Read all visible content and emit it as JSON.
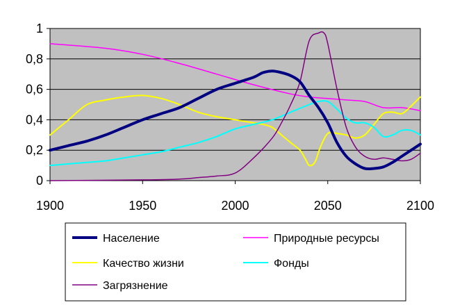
{
  "chart_data": {
    "type": "line",
    "title": "",
    "xlabel": "",
    "ylabel": "",
    "xlim": [
      1900,
      2100
    ],
    "ylim": [
      0,
      1
    ],
    "x_ticks": [
      1900,
      1950,
      2000,
      2050,
      2100
    ],
    "x_tick_labels": [
      "1900",
      "1950",
      "2000",
      "2050",
      "2100"
    ],
    "y_ticks": [
      0,
      0.2,
      0.4,
      0.6,
      0.8,
      1
    ],
    "y_tick_labels": [
      "0",
      "0,2",
      "0,4",
      "0,6",
      "0,8",
      "1"
    ],
    "grid": "horizontal",
    "plot_background": "#c0c0c0",
    "legend_position": "bottom",
    "series": [
      {
        "name": "Население",
        "color": "#000080",
        "x": [
          1900,
          1910,
          1920,
          1930,
          1940,
          1950,
          1960,
          1970,
          1980,
          1990,
          2000,
          2010,
          2015,
          2020,
          2025,
          2030,
          2035,
          2040,
          2045,
          2050,
          2055,
          2060,
          2065,
          2070,
          2075,
          2080,
          2085,
          2090,
          2095,
          2100
        ],
        "y": [
          0.2,
          0.23,
          0.26,
          0.3,
          0.35,
          0.4,
          0.44,
          0.48,
          0.54,
          0.6,
          0.64,
          0.68,
          0.71,
          0.72,
          0.71,
          0.69,
          0.65,
          0.56,
          0.48,
          0.38,
          0.25,
          0.16,
          0.11,
          0.08,
          0.08,
          0.09,
          0.12,
          0.16,
          0.2,
          0.24
        ]
      },
      {
        "name": "Природные ресурсы",
        "color": "#ff00ff",
        "x": [
          1900,
          1930,
          1950,
          1970,
          1990,
          2010,
          2030,
          2040,
          2050,
          2060,
          2070,
          2080,
          2090,
          2100
        ],
        "y": [
          0.9,
          0.87,
          0.83,
          0.77,
          0.7,
          0.63,
          0.57,
          0.55,
          0.54,
          0.53,
          0.52,
          0.48,
          0.48,
          0.46
        ]
      },
      {
        "name": "Качество жизни",
        "color": "#ffff00",
        "x": [
          1900,
          1910,
          1920,
          1930,
          1940,
          1950,
          1960,
          1970,
          1980,
          1990,
          2000,
          2010,
          2015,
          2020,
          2025,
          2030,
          2035,
          2038,
          2040,
          2043,
          2046,
          2050,
          2055,
          2060,
          2065,
          2070,
          2075,
          2080,
          2085,
          2090,
          2095,
          2100
        ],
        "y": [
          0.3,
          0.4,
          0.5,
          0.53,
          0.55,
          0.56,
          0.54,
          0.5,
          0.45,
          0.42,
          0.4,
          0.38,
          0.37,
          0.35,
          0.3,
          0.25,
          0.2,
          0.14,
          0.1,
          0.12,
          0.22,
          0.31,
          0.31,
          0.3,
          0.28,
          0.3,
          0.37,
          0.44,
          0.45,
          0.44,
          0.49,
          0.55
        ]
      },
      {
        "name": "Фонды",
        "color": "#00ffff",
        "x": [
          1900,
          1910,
          1920,
          1930,
          1940,
          1950,
          1960,
          1970,
          1980,
          1990,
          2000,
          2010,
          2020,
          2030,
          2040,
          2045,
          2050,
          2055,
          2060,
          2065,
          2070,
          2075,
          2080,
          2085,
          2090,
          2095,
          2100
        ],
        "y": [
          0.1,
          0.11,
          0.12,
          0.13,
          0.15,
          0.17,
          0.19,
          0.22,
          0.25,
          0.29,
          0.34,
          0.37,
          0.4,
          0.45,
          0.5,
          0.52,
          0.52,
          0.47,
          0.41,
          0.38,
          0.38,
          0.35,
          0.29,
          0.3,
          0.33,
          0.33,
          0.3
        ]
      },
      {
        "name": "Загрязнение",
        "color": "#800080",
        "x": [
          1900,
          1950,
          1970,
          1980,
          1990,
          2000,
          2010,
          2020,
          2025,
          2030,
          2035,
          2040,
          2045,
          2048,
          2050,
          2055,
          2060,
          2065,
          2070,
          2075,
          2080,
          2085,
          2090,
          2095,
          2100
        ],
        "y": [
          0.0,
          0.005,
          0.01,
          0.02,
          0.03,
          0.05,
          0.15,
          0.28,
          0.38,
          0.5,
          0.65,
          0.92,
          0.97,
          0.97,
          0.9,
          0.6,
          0.35,
          0.22,
          0.16,
          0.14,
          0.15,
          0.14,
          0.13,
          0.14,
          0.18
        ]
      }
    ]
  }
}
